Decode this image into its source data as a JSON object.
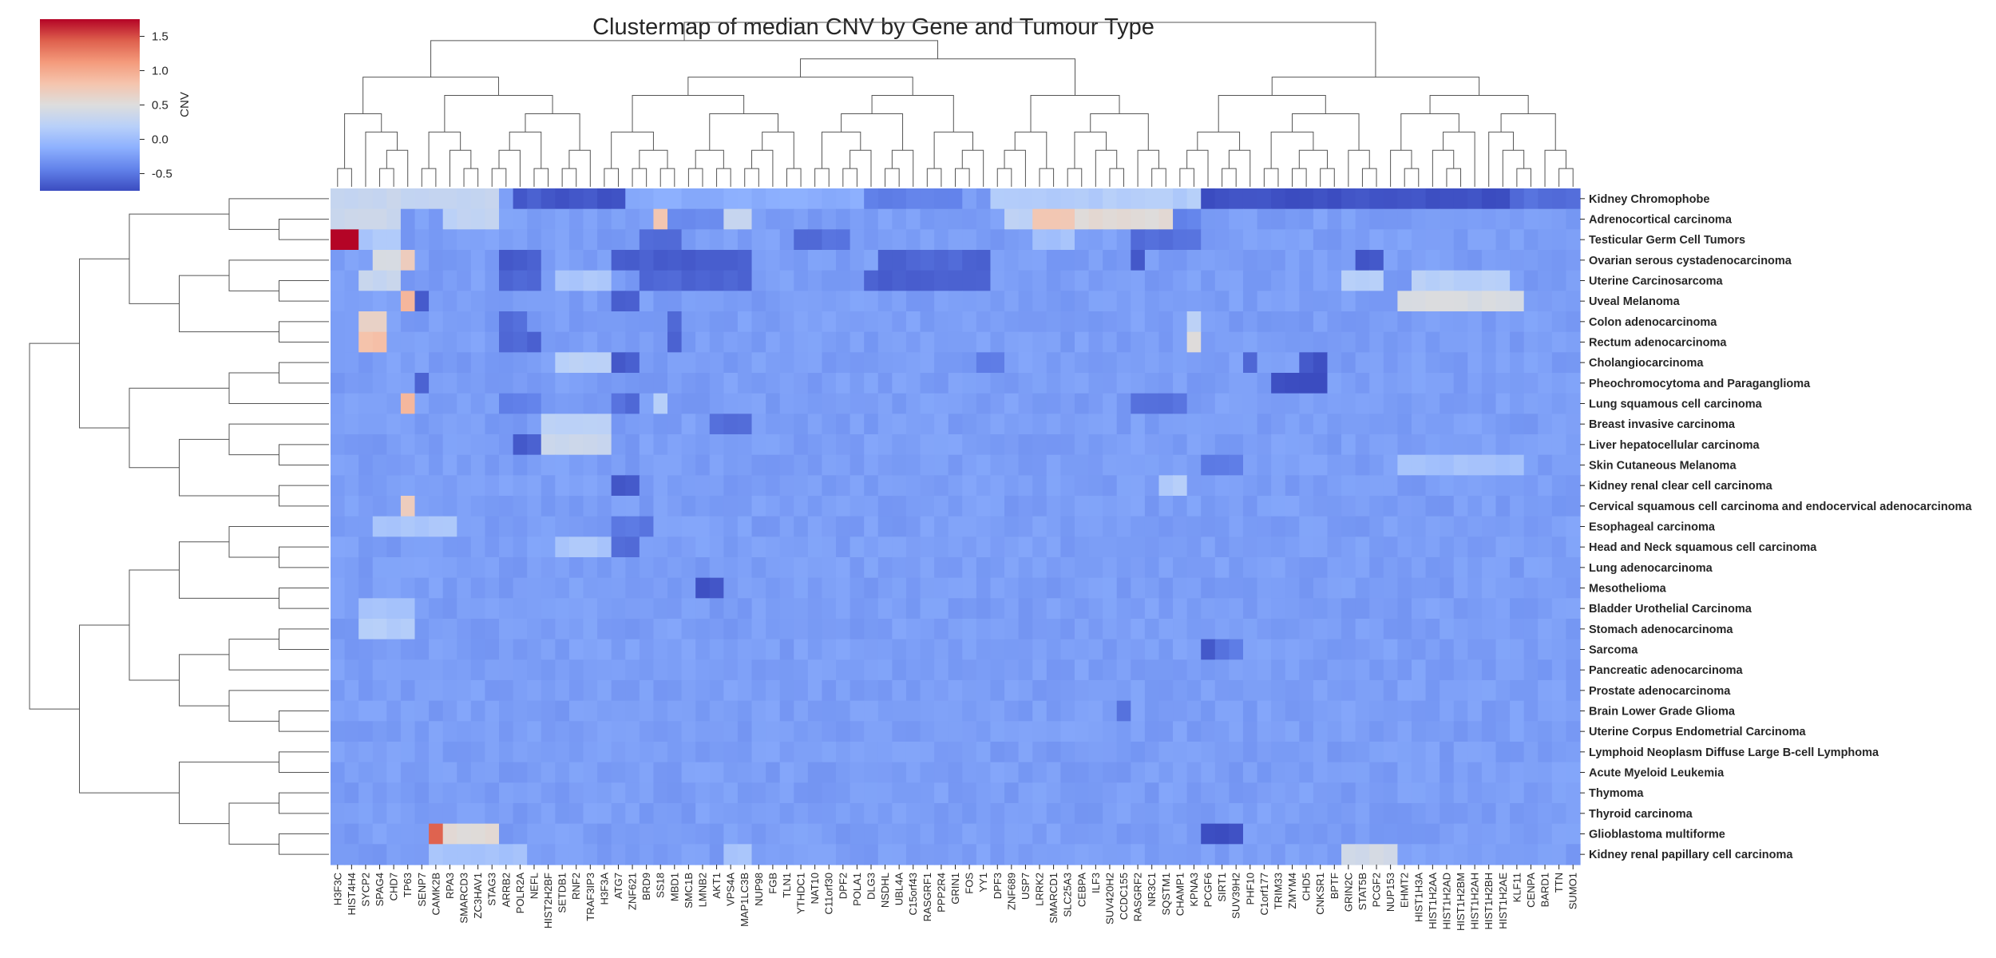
{
  "chart_data": {
    "type": "heatmap",
    "title": "Clustermap of median CNV by Gene and Tumour Type",
    "colorbar": {
      "label": "CNV",
      "ticks": [
        "1.5",
        "1.0",
        "0.5",
        "0.0",
        "-0.5"
      ],
      "tick_values": [
        1.5,
        1.0,
        0.5,
        0.0,
        -0.5
      ],
      "range": [
        -0.75,
        1.75
      ],
      "colormap": "coolwarm",
      "colors": {
        "low": "#3b4cc0",
        "mid": "#dddddd",
        "high": "#b40426"
      }
    },
    "baseline_value": -0.25,
    "rows": [
      "Kidney Chromophobe",
      "Adrenocortical carcinoma",
      "Testicular Germ Cell Tumors",
      "Ovarian serous cystadenocarcinoma",
      "Uterine Carcinosarcoma",
      "Uveal Melanoma",
      "Colon adenocarcinoma",
      "Rectum adenocarcinoma",
      "Cholangiocarcinoma",
      "Pheochromocytoma and Paraganglioma",
      "Lung squamous cell carcinoma",
      "Breast invasive carcinoma",
      "Liver hepatocellular carcinoma",
      "Skin Cutaneous Melanoma",
      "Kidney renal clear cell carcinoma",
      "Cervical squamous cell carcinoma and endocervical adenocarcinoma",
      "Esophageal carcinoma",
      "Head and Neck squamous cell carcinoma",
      "Lung adenocarcinoma",
      "Mesothelioma",
      "Bladder Urothelial Carcinoma",
      "Stomach adenocarcinoma",
      "Sarcoma",
      "Pancreatic adenocarcinoma",
      "Prostate adenocarcinoma",
      "Brain Lower Grade Glioma",
      "Uterine Corpus Endometrial Carcinoma",
      "Lymphoid Neoplasm Diffuse Large B-cell Lymphoma",
      "Acute Myeloid Leukemia",
      "Thymoma",
      "Thyroid carcinoma",
      "Glioblastoma multiforme",
      "Kidney renal papillary cell carcinoma"
    ],
    "columns": [
      "H3F3C",
      "HIST4H4",
      "SYCP2",
      "SPAG4",
      "CHD7",
      "TP63",
      "SENP7",
      "CAMK2B",
      "RPA3",
      "SMARCD3",
      "ZC3HAV1",
      "STAG3",
      "ARRB2",
      "POLR2A",
      "NEFL",
      "HIST2H2BF",
      "SETDB1",
      "RNF2",
      "TRAF3IP3",
      "H3F3A",
      "ATG7",
      "ZNF621",
      "BRD9",
      "SS18",
      "MBD1",
      "SMC1B",
      "LMNB2",
      "AKT1",
      "VPS4A",
      "MAP1LC3B",
      "NUP98",
      "FGB",
      "TLN1",
      "YTHDC1",
      "NAT10",
      "C11orf30",
      "DPF2",
      "POLA1",
      "DLG3",
      "NSDHL",
      "UBL4A",
      "C15orf43",
      "RASGRF1",
      "PPP2R4",
      "GRIN1",
      "FOS",
      "YY1",
      "DPF3",
      "ZNF689",
      "USP7",
      "LRRK2",
      "SMARCD1",
      "SLC25A3",
      "CEBPA",
      "ILF3",
      "SUV420H2",
      "CCDC155",
      "RASGRF2",
      "NR3C1",
      "SQSTM1",
      "CHAMP1",
      "KPNA3",
      "PCGF6",
      "SIRT1",
      "SUV39H2",
      "PHF10",
      "C1orf177",
      "TRIM33",
      "ZMYM4",
      "CHD5",
      "CNKSR1",
      "BPTF",
      "GRIN2C",
      "STAT5B",
      "PCGF2",
      "NUP153",
      "EHMT2",
      "HIST1H3A",
      "HIST1H2AA",
      "HIST1H2AD",
      "HIST1H2BM",
      "HIST1H2AH",
      "HIST1H2BH",
      "HIST1H2AE",
      "KLF11",
      "CENPA",
      "BARD1",
      "TTN",
      "SUMO1"
    ],
    "features": [
      {
        "row": 0,
        "from": 0,
        "to": 11,
        "value": 0.3
      },
      {
        "row": 0,
        "from": 13,
        "to": 13,
        "value": -0.7
      },
      {
        "row": 0,
        "from": 14,
        "to": 14,
        "value": -0.6
      },
      {
        "row": 0,
        "from": 15,
        "to": 20,
        "value": -0.7
      },
      {
        "row": 0,
        "from": 21,
        "to": 37,
        "value": -0.15
      },
      {
        "row": 0,
        "from": 38,
        "to": 44,
        "value": -0.45
      },
      {
        "row": 0,
        "from": 47,
        "to": 61,
        "value": 0.15
      },
      {
        "row": 0,
        "from": 62,
        "to": 83,
        "value": -0.72
      },
      {
        "row": 0,
        "from": 84,
        "to": 88,
        "value": -0.55
      },
      {
        "row": 1,
        "from": 0,
        "to": 4,
        "value": 0.35
      },
      {
        "row": 1,
        "from": 8,
        "to": 11,
        "value": 0.25
      },
      {
        "row": 1,
        "from": 23,
        "to": 23,
        "value": 0.75
      },
      {
        "row": 1,
        "from": 24,
        "to": 27,
        "value": -0.4
      },
      {
        "row": 1,
        "from": 28,
        "to": 29,
        "value": 0.3
      },
      {
        "row": 1,
        "from": 48,
        "to": 49,
        "value": 0.25
      },
      {
        "row": 1,
        "from": 50,
        "to": 52,
        "value": 0.75
      },
      {
        "row": 1,
        "from": 53,
        "to": 59,
        "value": 0.55
      },
      {
        "row": 1,
        "from": 60,
        "to": 61,
        "value": -0.45
      },
      {
        "row": 2,
        "from": 0,
        "to": 1,
        "value": 1.75
      },
      {
        "row": 2,
        "from": 2,
        "to": 4,
        "value": 0.1
      },
      {
        "row": 2,
        "from": 22,
        "to": 24,
        "value": -0.55
      },
      {
        "row": 2,
        "from": 33,
        "to": 36,
        "value": -0.55
      },
      {
        "row": 2,
        "from": 50,
        "to": 52,
        "value": 0.05
      },
      {
        "row": 2,
        "from": 57,
        "to": 61,
        "value": -0.55
      },
      {
        "row": 3,
        "from": 3,
        "to": 5,
        "value": 0.45
      },
      {
        "row": 3,
        "from": 5,
        "to": 5,
        "value": 0.7
      },
      {
        "row": 3,
        "from": 12,
        "to": 14,
        "value": -0.65
      },
      {
        "row": 3,
        "from": 20,
        "to": 29,
        "value": -0.65
      },
      {
        "row": 3,
        "from": 39,
        "to": 46,
        "value": -0.6
      },
      {
        "row": 3,
        "from": 57,
        "to": 57,
        "value": -0.7
      },
      {
        "row": 3,
        "from": 73,
        "to": 74,
        "value": -0.7
      },
      {
        "row": 4,
        "from": 2,
        "to": 4,
        "value": 0.3
      },
      {
        "row": 4,
        "from": 12,
        "to": 14,
        "value": -0.6
      },
      {
        "row": 4,
        "from": 16,
        "to": 19,
        "value": 0.1
      },
      {
        "row": 4,
        "from": 22,
        "to": 29,
        "value": -0.6
      },
      {
        "row": 4,
        "from": 38,
        "to": 46,
        "value": -0.65
      },
      {
        "row": 4,
        "from": 72,
        "to": 74,
        "value": 0.15
      },
      {
        "row": 4,
        "from": 77,
        "to": 83,
        "value": 0.2
      },
      {
        "row": 5,
        "from": 5,
        "to": 5,
        "value": 0.95
      },
      {
        "row": 5,
        "from": 6,
        "to": 6,
        "value": -0.65
      },
      {
        "row": 5,
        "from": 20,
        "to": 21,
        "value": -0.65
      },
      {
        "row": 5,
        "from": 76,
        "to": 84,
        "value": 0.45
      },
      {
        "row": 6,
        "from": 2,
        "to": 3,
        "value": 0.65
      },
      {
        "row": 6,
        "from": 12,
        "to": 13,
        "value": -0.55
      },
      {
        "row": 6,
        "from": 24,
        "to": 24,
        "value": -0.55
      },
      {
        "row": 6,
        "from": 61,
        "to": 61,
        "value": 0.2
      },
      {
        "row": 7,
        "from": 2,
        "to": 3,
        "value": 0.85
      },
      {
        "row": 7,
        "from": 12,
        "to": 14,
        "value": -0.6
      },
      {
        "row": 7,
        "from": 24,
        "to": 24,
        "value": -0.65
      },
      {
        "row": 7,
        "from": 61,
        "to": 61,
        "value": 0.5
      },
      {
        "row": 8,
        "from": 16,
        "to": 19,
        "value": 0.2
      },
      {
        "row": 8,
        "from": 20,
        "to": 21,
        "value": -0.65
      },
      {
        "row": 8,
        "from": 46,
        "to": 47,
        "value": -0.5
      },
      {
        "row": 8,
        "from": 65,
        "to": 65,
        "value": -0.6
      },
      {
        "row": 8,
        "from": 69,
        "to": 70,
        "value": -0.7
      },
      {
        "row": 9,
        "from": 6,
        "to": 6,
        "value": -0.6
      },
      {
        "row": 9,
        "from": 67,
        "to": 70,
        "value": -0.75
      },
      {
        "row": 10,
        "from": 5,
        "to": 5,
        "value": 0.9
      },
      {
        "row": 10,
        "from": 12,
        "to": 14,
        "value": -0.45
      },
      {
        "row": 10,
        "from": 20,
        "to": 21,
        "value": -0.55
      },
      {
        "row": 10,
        "from": 23,
        "to": 23,
        "value": 0.2
      },
      {
        "row": 10,
        "from": 57,
        "to": 60,
        "value": -0.55
      },
      {
        "row": 11,
        "from": 15,
        "to": 19,
        "value": 0.2
      },
      {
        "row": 11,
        "from": 27,
        "to": 29,
        "value": -0.55
      },
      {
        "row": 12,
        "from": 13,
        "to": 14,
        "value": -0.65
      },
      {
        "row": 12,
        "from": 15,
        "to": 19,
        "value": 0.35
      },
      {
        "row": 13,
        "from": 62,
        "to": 64,
        "value": -0.45
      },
      {
        "row": 13,
        "from": 76,
        "to": 84,
        "value": 0.05
      },
      {
        "row": 14,
        "from": 20,
        "to": 21,
        "value": -0.7
      },
      {
        "row": 14,
        "from": 59,
        "to": 60,
        "value": 0.15
      },
      {
        "row": 15,
        "from": 5,
        "to": 5,
        "value": 0.7
      },
      {
        "row": 16,
        "from": 3,
        "to": 8,
        "value": 0.1
      },
      {
        "row": 16,
        "from": 20,
        "to": 22,
        "value": -0.5
      },
      {
        "row": 17,
        "from": 16,
        "to": 19,
        "value": 0.1
      },
      {
        "row": 17,
        "from": 20,
        "to": 21,
        "value": -0.55
      },
      {
        "row": 19,
        "from": 26,
        "to": 27,
        "value": -0.7
      },
      {
        "row": 20,
        "from": 2,
        "to": 5,
        "value": 0.05
      },
      {
        "row": 21,
        "from": 2,
        "to": 5,
        "value": 0.15
      },
      {
        "row": 22,
        "from": 62,
        "to": 62,
        "value": -0.65
      },
      {
        "row": 22,
        "from": 63,
        "to": 64,
        "value": -0.5
      },
      {
        "row": 25,
        "from": 56,
        "to": 56,
        "value": -0.55
      },
      {
        "row": 31,
        "from": 7,
        "to": 7,
        "value": 1.45
      },
      {
        "row": 31,
        "from": 8,
        "to": 11,
        "value": 0.55
      },
      {
        "row": 31,
        "from": 62,
        "to": 64,
        "value": -0.72
      },
      {
        "row": 32,
        "from": 7,
        "to": 11,
        "value": 0.05
      },
      {
        "row": 32,
        "from": 12,
        "to": 13,
        "value": 0.05
      },
      {
        "row": 32,
        "from": 28,
        "to": 29,
        "value": 0.05
      },
      {
        "row": 32,
        "from": 72,
        "to": 75,
        "value": 0.4
      }
    ]
  }
}
